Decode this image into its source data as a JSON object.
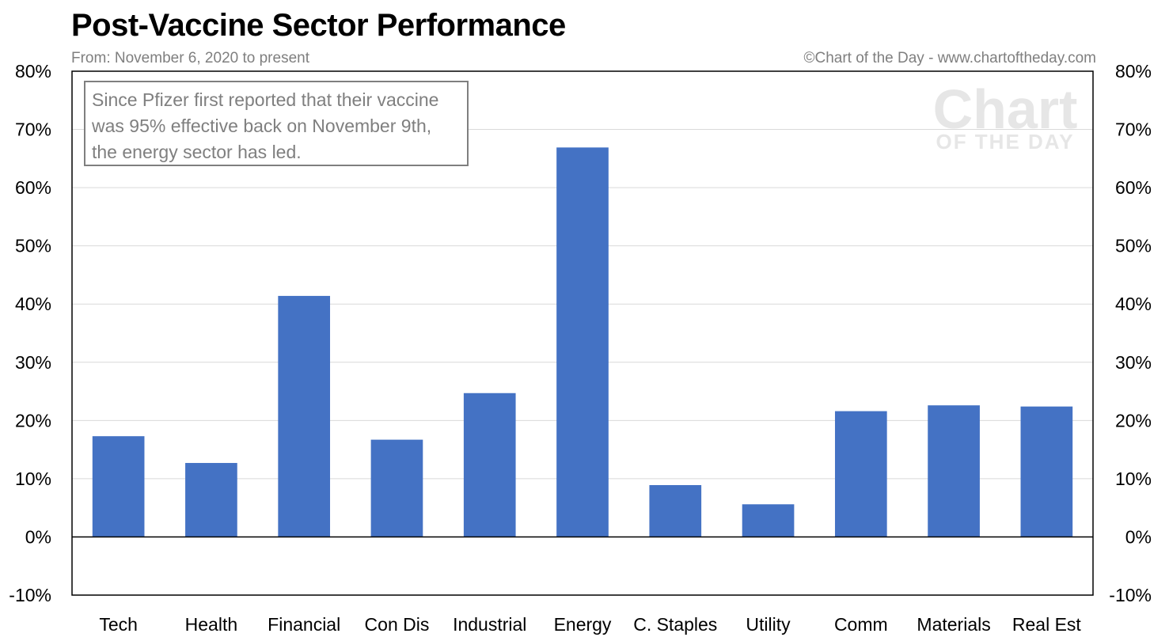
{
  "header": {
    "title": "Post-Vaccine Sector Performance",
    "subtitle": "From: November 6, 2020 to present",
    "credit": "©Chart of the Day - www.chartoftheday.com"
  },
  "annotation": {
    "text": "Since Pfizer first reported that their vaccine was 95% effective back on November 9th, the energy sector has led."
  },
  "watermark": {
    "line1": "Chart",
    "line2": "OF THE DAY"
  },
  "colors": {
    "bar": "#4472c4",
    "grid": "#d9d9d9",
    "axis": "#000000",
    "annotation": "#7f7f7f"
  },
  "chart_data": {
    "type": "bar",
    "categories": [
      "Tech",
      "Health",
      "Financial",
      "Con Dis",
      "Industrial",
      "Energy",
      "C. Staples",
      "Utility",
      "Comm",
      "Materials",
      "Real Est"
    ],
    "values": [
      17.3,
      12.7,
      41.4,
      16.7,
      24.7,
      66.9,
      8.9,
      5.6,
      21.6,
      22.6,
      22.4
    ],
    "unit": "%",
    "ylim": [
      -10,
      80
    ],
    "yticks": [
      -10,
      0,
      10,
      20,
      30,
      40,
      50,
      60,
      70,
      80
    ],
    "ytick_labels": [
      "-10%",
      "0%",
      "10%",
      "20%",
      "30%",
      "40%",
      "50%",
      "60%",
      "70%",
      "80%"
    ],
    "grid": true,
    "secondary_y_axis": true
  }
}
